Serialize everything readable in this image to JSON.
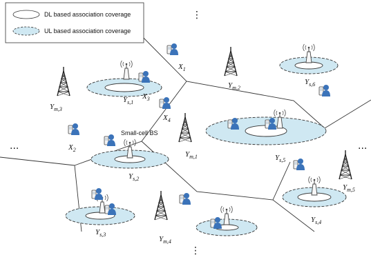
{
  "legend": {
    "dl_label": "DL based association coverage",
    "ul_label": "UL based association coverage"
  },
  "colors": {
    "ul_fill": "#cfe8f2",
    "dl_fill": "#ffffff",
    "boundary": "#333333",
    "user_body": "#3b73b9",
    "tower": "#222222"
  },
  "icons": [
    "macro-tower-icon",
    "small-cell-bs-icon",
    "user-icon",
    "mobile-phone-icon"
  ],
  "small_cell_bs_label": "Small-cell BS",
  "continuation": "⋮",
  "ellipsis": "...",
  "macro_bs": [
    {
      "base": "Y",
      "sub": "m,2"
    },
    {
      "base": "Y",
      "sub": "m,3"
    },
    {
      "base": "Y",
      "sub": "m,1"
    },
    {
      "base": "Y",
      "sub": "m,4"
    },
    {
      "base": "Y",
      "sub": "m,5"
    }
  ],
  "small_bs": [
    {
      "base": "Y",
      "sub": "s,1"
    },
    {
      "base": "Y",
      "sub": "s,2"
    },
    {
      "base": "Y",
      "sub": "s,3"
    },
    {
      "base": "Y",
      "sub": "s,4"
    },
    {
      "base": "Y",
      "sub": "s,5"
    },
    {
      "base": "Y",
      "sub": "s,6"
    }
  ],
  "users": [
    {
      "base": "X",
      "sub": "1"
    },
    {
      "base": "X",
      "sub": "2"
    },
    {
      "base": "X",
      "sub": "3"
    },
    {
      "base": "X",
      "sub": "4"
    }
  ]
}
